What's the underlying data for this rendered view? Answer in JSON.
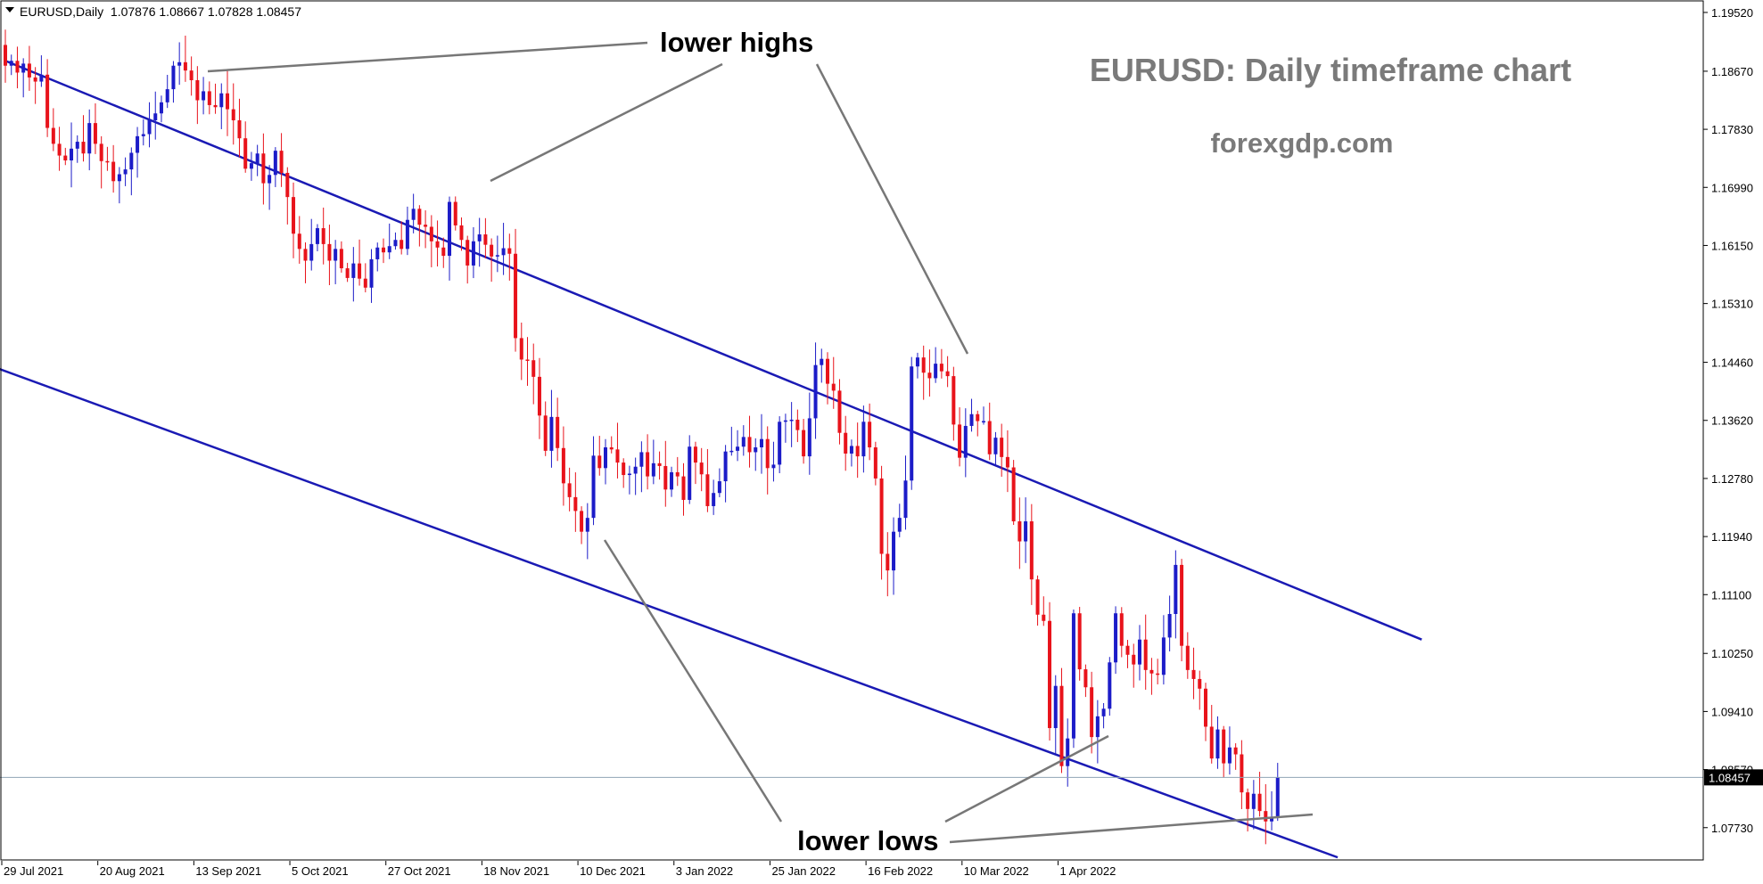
{
  "colors": {
    "background": "#ffffff",
    "frame": "#000000",
    "bull": "#1c1cc8",
    "bear": "#e8131b",
    "channel": "#1a1ab4",
    "annotation_line": "#777777",
    "watermark": "#7a7a7a",
    "price_line": "#90a4b4"
  },
  "symbol_info": {
    "label": "EURUSD,Daily  1.07876 1.08667 1.07828 1.08457"
  },
  "watermark": {
    "title": "EURUSD: Daily timeframe chart",
    "site": "forexgdp.com"
  },
  "annotations": {
    "lower_highs": "lower highs",
    "lower_lows": "lower lows"
  },
  "current_price": {
    "label": "1.08457",
    "value": 1.08457
  },
  "chart_data": {
    "type": "candlestick",
    "symbol": "EURUSD",
    "timeframe": "Daily",
    "ylim": [
      1.0725,
      1.197
    ],
    "y_ticks": [
      "1.19520",
      "1.18670",
      "1.17830",
      "1.16990",
      "1.16150",
      "1.15310",
      "1.14460",
      "1.13620",
      "1.12780",
      "1.11940",
      "1.11100",
      "1.10250",
      "1.09410",
      "1.08570",
      "1.07730"
    ],
    "x_ticks": [
      "29 Jul 2021",
      "20 Aug 2021",
      "13 Sep 2021",
      "5 Oct 2021",
      "27 Oct 2021",
      "18 Nov 2021",
      "10 Dec 2021",
      "3 Jan 2022",
      "25 Jan 2022",
      "16 Feb 2022",
      "10 Mar 2022",
      "1 Apr 2022"
    ],
    "last_bar": {
      "open": 1.07876,
      "high": 1.08667,
      "low": 1.07828,
      "close": 1.08457
    },
    "channel": {
      "upper": [
        {
          "bar": 0,
          "price": 1.1882
        },
        {
          "bar": 236,
          "price": 1.1045
        }
      ],
      "lower": [
        {
          "bar": -5,
          "price": 1.1449
        },
        {
          "bar": 222,
          "price": 1.073
        }
      ]
    },
    "closes": [
      1.1875,
      1.1882,
      1.1865,
      1.1878,
      1.1858,
      1.1852,
      1.1862,
      1.1785,
      1.1762,
      1.1745,
      1.1738,
      1.1755,
      1.1765,
      1.1748,
      1.1792,
      1.1762,
      1.1737,
      1.1736,
      1.1708,
      1.1718,
      1.1725,
      1.1749,
      1.1773,
      1.1776,
      1.1796,
      1.1806,
      1.1822,
      1.1841,
      1.1875,
      1.188,
      1.1868,
      1.1854,
      1.1825,
      1.1838,
      1.1818,
      1.1815,
      1.1835,
      1.1812,
      1.1796,
      1.177,
      1.1726,
      1.1734,
      1.1748,
      1.1705,
      1.1717,
      1.1752,
      1.172,
      1.1685,
      1.1632,
      1.161,
      1.1593,
      1.1617,
      1.164,
      1.1617,
      1.1593,
      1.161,
      1.1582,
      1.1568,
      1.1589,
      1.1567,
      1.1554,
      1.1595,
      1.1612,
      1.1605,
      1.1614,
      1.1623,
      1.161,
      1.1652,
      1.1668,
      1.1645,
      1.1642,
      1.1621,
      1.1612,
      1.16,
      1.1678,
      1.1644,
      1.1623,
      1.1586,
      1.1621,
      1.1631,
      1.1616,
      1.1599,
      1.1601,
      1.1611,
      1.1603,
      1.1481,
      1.145,
      1.1449,
      1.1425,
      1.1369,
      1.1318,
      1.1367,
      1.1322,
      1.1271,
      1.1251,
      1.1231,
      1.1201,
      1.1221,
      1.1311,
      1.1293,
      1.1323,
      1.132,
      1.1301,
      1.1283,
      1.1285,
      1.1295,
      1.1316,
      1.1281,
      1.13,
      1.1296,
      1.1262,
      1.1287,
      1.1281,
      1.1247,
      1.1324,
      1.1301,
      1.1284,
      1.1238,
      1.1257,
      1.1274,
      1.1317,
      1.1318,
      1.1324,
      1.1338,
      1.1316,
      1.1323,
      1.1335,
      1.1293,
      1.1298,
      1.136,
      1.1362,
      1.1363,
      1.1348,
      1.131,
      1.1365,
      1.1442,
      1.1451,
      1.1415,
      1.1405,
      1.1344,
      1.1314,
      1.1325,
      1.131,
      1.136,
      1.1323,
      1.1278,
      1.1169,
      1.1145,
      1.1201,
      1.1221,
      1.1275,
      1.144,
      1.1453,
      1.1431,
      1.1423,
      1.1444,
      1.1433,
      1.1426,
      1.1356,
      1.1308,
      1.1354,
      1.1371,
      1.1361,
      1.1361,
      1.1313,
      1.1337,
      1.1309,
      1.1294,
      1.1216,
      1.1187,
      1.1216,
      1.1132,
      1.1081,
      1.1072,
      1.0917,
      1.0978,
      1.0862,
      1.0902,
      1.1083,
      1.1002,
      1.0976,
      1.0904,
      1.0934,
      1.0945,
      1.1012,
      1.1083,
      1.1036,
      1.1023,
      1.1009,
      1.1045,
      1.1001,
      1.0996,
      1.0994,
      1.1048,
      1.1082,
      1.1153,
      1.1036,
      1.1001,
      1.0988,
      1.0974,
      1.0919,
      1.0873,
      1.0915,
      1.0866,
      1.0889,
      1.0879,
      1.0824,
      1.08,
      1.0822,
      1.0797,
      1.0782,
      1.0788,
      1.0846
    ]
  }
}
